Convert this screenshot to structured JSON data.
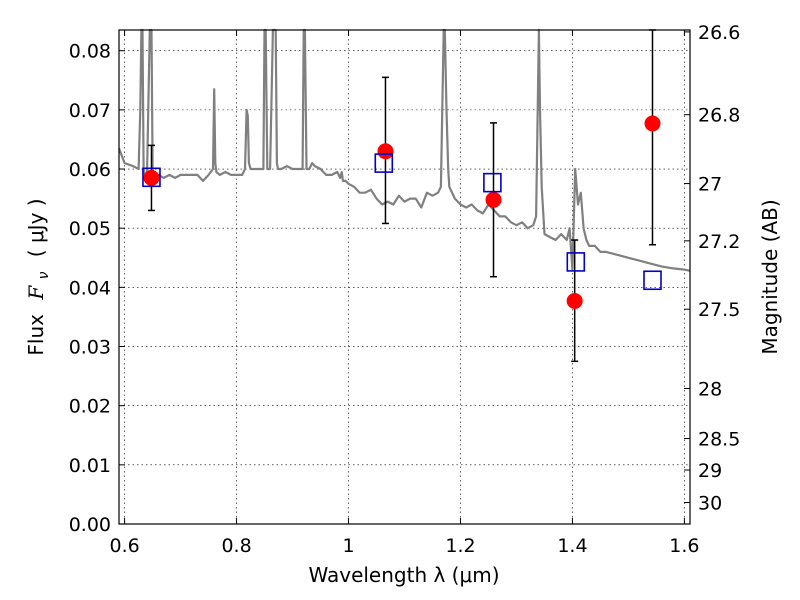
{
  "chart_data": {
    "type": "scatter",
    "xlabel": "Wavelength  λ (μm)",
    "ylabel_left": {
      "prefix": "Flux",
      "symbol": "F",
      "subscript": "ν",
      "unit": "( μJy )"
    },
    "ylabel_right": "Magnitude (AB)",
    "xlim": [
      0.59,
      1.61
    ],
    "ylim": [
      0.0,
      0.0835
    ],
    "x_ticks": [
      0.6,
      0.8,
      1.0,
      1.2,
      1.4,
      1.6
    ],
    "x_tick_labels": [
      "0.6",
      "0.8",
      "1",
      "1.2",
      "1.4",
      "1.6"
    ],
    "y_ticks": [
      0.0,
      0.01,
      0.02,
      0.03,
      0.04,
      0.05,
      0.06,
      0.07,
      0.08
    ],
    "y_tick_labels": [
      "0.00",
      "0.01",
      "0.02",
      "0.03",
      "0.04",
      "0.05",
      "0.06",
      "0.07",
      "0.08"
    ],
    "right_ticks": [
      {
        "label": "26.6",
        "mag": 26.6
      },
      {
        "label": "26.8",
        "mag": 26.8
      },
      {
        "label": "27",
        "mag": 27.0
      },
      {
        "label": "27.2",
        "mag": 27.2
      },
      {
        "label": "27.5",
        "mag": 27.5
      },
      {
        "label": "28",
        "mag": 28.0
      },
      {
        "label": "28.5",
        "mag": 28.5
      },
      {
        "label": "29",
        "mag": 29.0
      },
      {
        "label": "30",
        "mag": 30.0
      }
    ],
    "grid": true,
    "colors": {
      "observed": "#ff0000",
      "model_box": "#0000cc",
      "spectrum": "#808080",
      "errorbar": "#000000"
    },
    "series": [
      {
        "kind": "line",
        "x": [
          0.59,
          0.6,
          0.615,
          0.625,
          0.628,
          0.63,
          0.632,
          0.634,
          0.636,
          0.64,
          0.645,
          0.648,
          0.65,
          0.652,
          0.655,
          0.66,
          0.67,
          0.68,
          0.69,
          0.7,
          0.71,
          0.72,
          0.73,
          0.74,
          0.75,
          0.758,
          0.76,
          0.762,
          0.764,
          0.77,
          0.78,
          0.79,
          0.8,
          0.81,
          0.815,
          0.818,
          0.82,
          0.822,
          0.825,
          0.83,
          0.84,
          0.848,
          0.85,
          0.852,
          0.855,
          0.86,
          0.865,
          0.87,
          0.872,
          0.874,
          0.876,
          0.88,
          0.89,
          0.9,
          0.91,
          0.918,
          0.92,
          0.922,
          0.925,
          0.93,
          0.935,
          0.94,
          0.95,
          0.96,
          0.97,
          0.98,
          0.985,
          0.988,
          0.99,
          0.995,
          1.0,
          1.01,
          1.02,
          1.03,
          1.04,
          1.05,
          1.06,
          1.07,
          1.08,
          1.09,
          1.1,
          1.11,
          1.12,
          1.13,
          1.14,
          1.15,
          1.16,
          1.165,
          1.17,
          1.172,
          1.175,
          1.178,
          1.18,
          1.185,
          1.19,
          1.2,
          1.21,
          1.22,
          1.23,
          1.24,
          1.25,
          1.26,
          1.27,
          1.28,
          1.29,
          1.3,
          1.31,
          1.32,
          1.33,
          1.335,
          1.338,
          1.34,
          1.342,
          1.345,
          1.35,
          1.36,
          1.37,
          1.38,
          1.39,
          1.395,
          1.4,
          1.405,
          1.41,
          1.415,
          1.42,
          1.425,
          1.43,
          1.44,
          1.45,
          1.46,
          1.48,
          1.5,
          1.52,
          1.54,
          1.56,
          1.58,
          1.6,
          1.61
        ],
        "y": [
          0.0635,
          0.061,
          0.0605,
          0.06,
          0.07,
          0.0835,
          0.0835,
          0.06,
          0.059,
          0.059,
          0.0835,
          0.0835,
          0.06,
          0.058,
          0.0585,
          0.059,
          0.0585,
          0.059,
          0.0585,
          0.059,
          0.059,
          0.059,
          0.059,
          0.058,
          0.059,
          0.06,
          0.0735,
          0.061,
          0.0595,
          0.059,
          0.0595,
          0.059,
          0.059,
          0.059,
          0.06,
          0.07,
          0.069,
          0.061,
          0.06,
          0.06,
          0.06,
          0.06,
          0.0835,
          0.0835,
          0.06,
          0.06,
          0.0835,
          0.0835,
          0.061,
          0.06,
          0.06,
          0.06,
          0.0605,
          0.06,
          0.06,
          0.06,
          0.0835,
          0.0835,
          0.06,
          0.06,
          0.061,
          0.0605,
          0.06,
          0.059,
          0.059,
          0.0595,
          0.0585,
          0.0595,
          0.058,
          0.058,
          0.0575,
          0.057,
          0.056,
          0.056,
          0.0565,
          0.055,
          0.054,
          0.0545,
          0.054,
          0.0555,
          0.0545,
          0.055,
          0.055,
          0.0535,
          0.056,
          0.0555,
          0.056,
          0.057,
          0.0835,
          0.0835,
          0.07,
          0.06,
          0.057,
          0.056,
          0.055,
          0.054,
          0.0535,
          0.054,
          0.053,
          0.0525,
          0.054,
          0.053,
          0.052,
          0.052,
          0.051,
          0.0505,
          0.051,
          0.05,
          0.0505,
          0.052,
          0.07,
          0.0835,
          0.07,
          0.057,
          0.049,
          0.0485,
          0.048,
          0.049,
          0.048,
          0.05,
          0.043,
          0.06,
          0.054,
          0.056,
          0.05,
          0.048,
          0.047,
          0.047,
          0.046,
          0.046,
          0.0455,
          0.045,
          0.0445,
          0.044,
          0.0435,
          0.0432,
          0.043,
          0.0428
        ]
      },
      {
        "kind": "observed",
        "x": [
          0.648,
          1.066,
          1.259,
          1.404,
          1.543
        ],
        "y": [
          0.0585,
          0.063,
          0.0548,
          0.0377,
          0.0677
        ],
        "yerr_low": [
          0.053,
          0.0508,
          0.0418,
          0.0275,
          0.0472
        ],
        "yerr_high": [
          0.064,
          0.0755,
          0.0678,
          0.048,
          0.0835
        ]
      },
      {
        "kind": "model",
        "x": [
          0.648,
          1.063,
          1.257,
          1.406,
          1.543
        ],
        "y": [
          0.0586,
          0.061,
          0.0577,
          0.0443,
          0.0412
        ]
      }
    ]
  }
}
